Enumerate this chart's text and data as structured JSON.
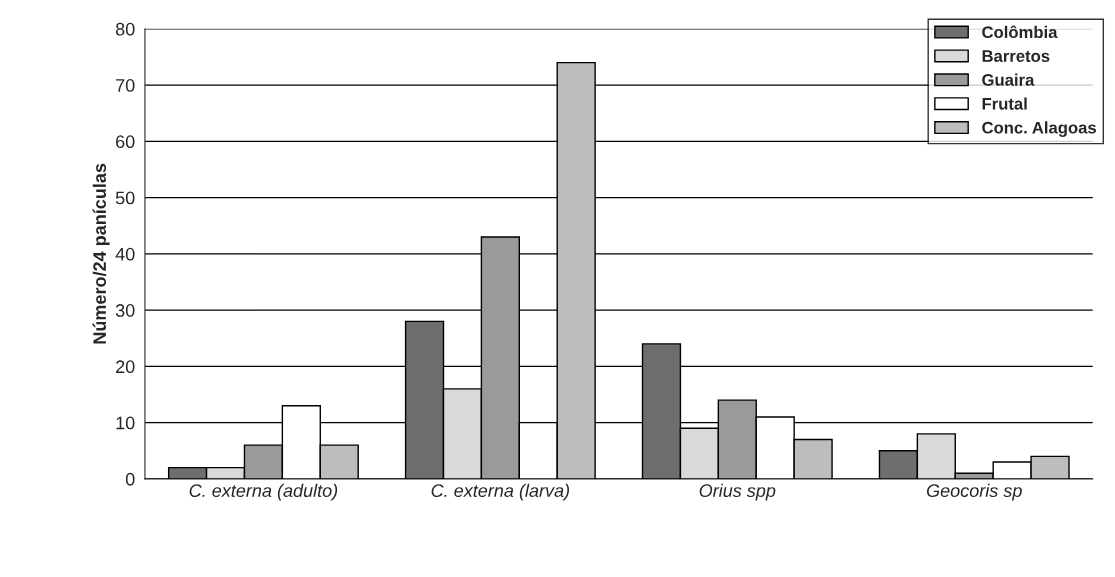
{
  "chart_data": {
    "type": "bar",
    "ylabel": "Número/24 panículas",
    "categories": [
      "C. externa (adulto)",
      "C. externa (larva)",
      "Orius spp",
      "Geocoris sp"
    ],
    "series": [
      {
        "name": "Colômbia",
        "color": "#6e6e6e",
        "values": [
          2,
          28,
          24,
          5
        ]
      },
      {
        "name": "Barretos",
        "color": "#d9d9d9",
        "values": [
          2,
          16,
          9,
          8
        ]
      },
      {
        "name": "Guaira",
        "color": "#9a9a9a",
        "values": [
          6,
          43,
          14,
          1
        ]
      },
      {
        "name": "Frutal",
        "color": "#ffffff",
        "values": [
          13,
          10,
          11,
          3
        ]
      },
      {
        "name": "Conc. Alagoas",
        "color": "#bdbdbd",
        "values": [
          6,
          74,
          7,
          4
        ]
      }
    ],
    "ylim": [
      0,
      80
    ],
    "yticks": [
      0,
      10,
      20,
      30,
      40,
      50,
      60,
      70,
      80
    ],
    "grid": "y",
    "legend": "top right"
  }
}
